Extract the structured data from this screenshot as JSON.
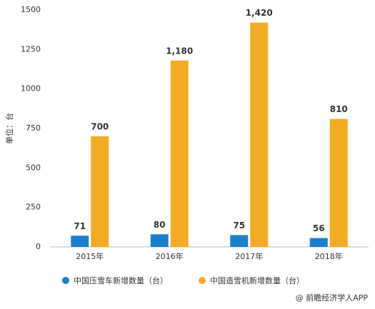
{
  "chart_data": {
    "type": "bar",
    "categories": [
      "2015年",
      "2016年",
      "2017年",
      "2018年"
    ],
    "y_label": "单位：台",
    "series": [
      {
        "name": "中国压雪车新增数量（台）",
        "color": "#1a7fcc",
        "values": [
          71,
          80,
          75,
          56
        ]
      },
      {
        "name": "中国造雪机新增数量（台）",
        "color": "#f2ac24",
        "values": [
          700,
          1180,
          1420,
          810
        ],
        "value_labels": [
          "700",
          "1,180",
          "1,420",
          "810"
        ]
      }
    ],
    "ylim": [
      0,
      1500
    ],
    "yticks": [
      0,
      250,
      500,
      750,
      1000,
      1250,
      1500
    ],
    "grid": false,
    "source": "@ 前瞻经济学人APP"
  }
}
